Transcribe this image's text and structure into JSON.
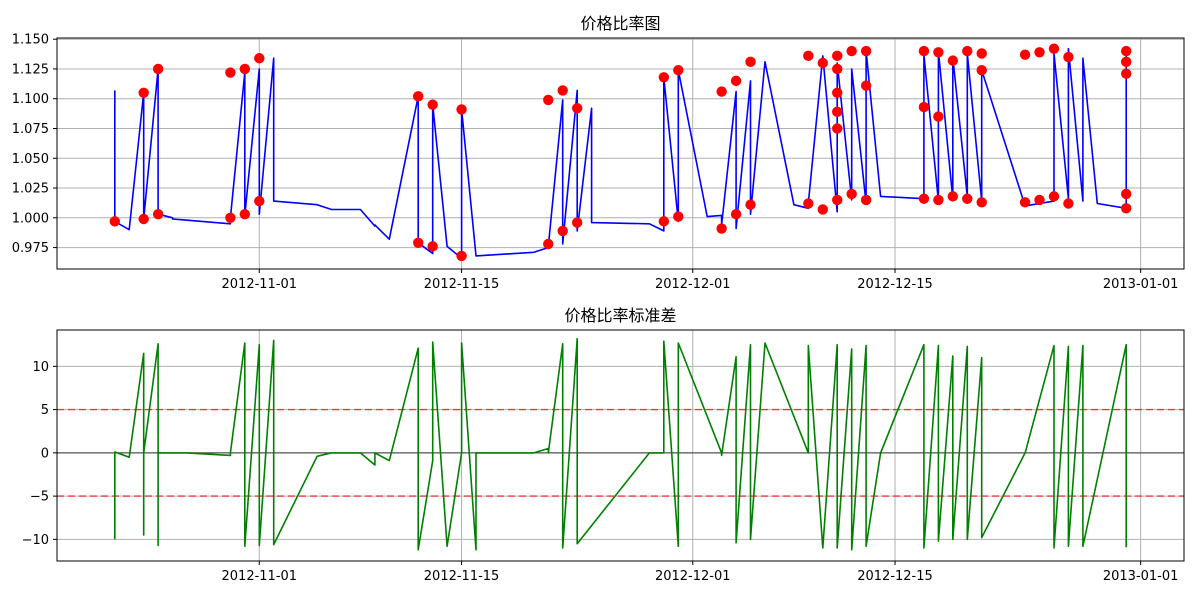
{
  "chart_data": [
    {
      "type": "line",
      "title": "价格比率图",
      "xlabel": "",
      "ylabel": "",
      "x_range": [
        "2012-10-18",
        "2013-01-04"
      ],
      "ylim": [
        0.957,
        1.151
      ],
      "grid": true,
      "colors": {
        "line": "#0000ff",
        "points": "#ff0000"
      },
      "x_ticks": [
        "2012-11-01",
        "2012-11-15",
        "2012-12-01",
        "2012-12-15",
        "2013-01-01"
      ],
      "y_ticks": [
        "0.975",
        "1.000",
        "1.025",
        "1.050",
        "1.075",
        "1.100",
        "1.125",
        "1.150"
      ],
      "series": [
        {
          "x": [
            "2012-10-22",
            "2012-10-22",
            "2012-10-23",
            "2012-10-24",
            "2012-10-24",
            "2012-10-25",
            "2012-10-25",
            "2012-10-26",
            "2012-10-26",
            "2012-10-27",
            "2012-10-30",
            "2012-10-30",
            "2012-10-31",
            "2012-10-31",
            "2012-11-01",
            "2012-11-01",
            "2012-11-02",
            "2012-11-02",
            "2012-11-05",
            "2012-11-06",
            "2012-11-08",
            "2012-11-09",
            "2012-11-09",
            "2012-11-10",
            "2012-11-12",
            "2012-11-12",
            "2012-11-13",
            "2012-11-13",
            "2012-11-14",
            "2012-11-15",
            "2012-11-15",
            "2012-11-16",
            "2012-11-16",
            "2012-11-20",
            "2012-11-21",
            "2012-11-21",
            "2012-11-22",
            "2012-11-22",
            "2012-11-23",
            "2012-11-23",
            "2012-11-24",
            "2012-11-24",
            "2012-11-28",
            "2012-11-29",
            "2012-11-29",
            "2012-11-30",
            "2012-11-30",
            "2012-12-02",
            "2012-12-03",
            "2012-12-03",
            "2012-12-04",
            "2012-12-04",
            "2012-12-05",
            "2012-12-05",
            "2012-12-06",
            "2012-12-08",
            "2012-12-09",
            "2012-12-09",
            "2012-12-10",
            "2012-12-11",
            "2012-12-11",
            "2012-12-12",
            "2012-12-12",
            "2012-12-13",
            "2012-12-13",
            "2012-12-14",
            "2012-12-17",
            "2012-12-17",
            "2012-12-18",
            "2012-12-18",
            "2012-12-19",
            "2012-12-19",
            "2012-12-20",
            "2012-12-20",
            "2012-12-21",
            "2012-12-21",
            "2012-12-24",
            "2012-12-26",
            "2012-12-26",
            "2012-12-27",
            "2012-12-27",
            "2012-12-28",
            "2012-12-28",
            "2012-12-29",
            "2012-12-31",
            "2012-12-31"
          ],
          "values": [
            1.107,
            0.997,
            0.99,
            1.105,
            0.999,
            1.125,
            1.003,
            1.0,
            0.999,
            0.998,
            0.995,
            1.0,
            1.122,
            1.002,
            1.125,
            1.003,
            1.134,
            1.014,
            1.011,
            1.007,
            1.007,
            0.993,
            0.994,
            0.982,
            1.102,
            0.979,
            0.97,
            1.095,
            0.976,
            0.966,
            1.091,
            0.968,
            0.968,
            0.971,
            0.975,
            0.976,
            1.099,
            0.978,
            1.107,
            0.989,
            1.092,
            0.996,
            0.995,
            0.989,
            1.118,
            0.997,
            1.124,
            1.001,
            1.002,
            0.994,
            1.106,
            0.991,
            1.115,
            1.003,
            1.131,
            1.011,
            1.008,
            1.012,
            1.136,
            1.005,
            1.13,
            1.015,
            1.125,
            1.012,
            1.14,
            1.018,
            1.016,
            1.137,
            1.014,
            1.14,
            1.016,
            1.135,
            1.018,
            1.138,
            1.014,
            1.124,
            1.01,
            1.014,
            1.138,
            1.016,
            1.142,
            1.014,
            1.134,
            1.012,
            1.008,
            1.14
          ]
        }
      ],
      "highlight_points": {
        "x": [
          "2012-10-22",
          "2012-10-24",
          "2012-10-24",
          "2012-10-25",
          "2012-10-25",
          "2012-10-30",
          "2012-10-30",
          "2012-10-31",
          "2012-10-31",
          "2012-11-01",
          "2012-11-01",
          "2012-11-12",
          "2012-11-12",
          "2012-11-13",
          "2012-11-13",
          "2012-11-15",
          "2012-11-15",
          "2012-11-21",
          "2012-11-21",
          "2012-11-22",
          "2012-11-22",
          "2012-11-23",
          "2012-11-23",
          "2012-11-29",
          "2012-11-29",
          "2012-11-30",
          "2012-11-30",
          "2012-12-03",
          "2012-12-03",
          "2012-12-04",
          "2012-12-04",
          "2012-12-05",
          "2012-12-05",
          "2012-12-09",
          "2012-12-09",
          "2012-12-10",
          "2012-12-10",
          "2012-12-11",
          "2012-12-11",
          "2012-12-11",
          "2012-12-11",
          "2012-12-11",
          "2012-12-11",
          "2012-12-12",
          "2012-12-12",
          "2012-12-13",
          "2012-12-13",
          "2012-12-13",
          "2012-12-17",
          "2012-12-17",
          "2012-12-17",
          "2012-12-18",
          "2012-12-18",
          "2012-12-18",
          "2012-12-19",
          "2012-12-19",
          "2012-12-20",
          "2012-12-20",
          "2012-12-21",
          "2012-12-21",
          "2012-12-21",
          "2012-12-24",
          "2012-12-24",
          "2012-12-25",
          "2012-12-25",
          "2012-12-26",
          "2012-12-26",
          "2012-12-27",
          "2012-12-27",
          "2012-12-31",
          "2012-12-31",
          "2012-12-31",
          "2012-12-31",
          "2012-12-31"
        ],
        "values": [
          0.997,
          1.105,
          0.999,
          1.125,
          1.003,
          1.122,
          1.0,
          1.125,
          1.003,
          1.134,
          1.014,
          1.102,
          0.979,
          1.095,
          0.976,
          1.091,
          0.968,
          1.099,
          0.978,
          1.107,
          0.989,
          1.092,
          0.996,
          1.118,
          0.997,
          1.124,
          1.001,
          1.106,
          0.991,
          1.115,
          1.003,
          1.131,
          1.011,
          1.136,
          1.012,
          1.13,
          1.007,
          1.136,
          1.125,
          1.105,
          1.089,
          1.075,
          1.015,
          1.14,
          1.02,
          1.111,
          1.14,
          1.015,
          1.14,
          1.093,
          1.016,
          1.139,
          1.085,
          1.015,
          1.132,
          1.018,
          1.14,
          1.016,
          1.138,
          1.124,
          1.013,
          1.137,
          1.013,
          1.139,
          1.015,
          1.142,
          1.018,
          1.135,
          1.012,
          1.14,
          1.131,
          1.121,
          1.02,
          1.008
        ]
      }
    },
    {
      "type": "line",
      "title": "价格比率标准差",
      "xlabel": "",
      "ylabel": "",
      "x_range": [
        "2012-10-18",
        "2013-01-04"
      ],
      "ylim": [
        -12.5,
        14.2
      ],
      "grid": true,
      "colors": {
        "line": "#008000",
        "threshold": "#ff0000",
        "zero": "#555555"
      },
      "x_ticks": [
        "2012-11-01",
        "2012-11-15",
        "2012-12-01",
        "2012-12-15",
        "2013-01-01"
      ],
      "y_ticks": [
        "−10",
        "−5",
        "0",
        "5",
        "10"
      ],
      "thresholds": [
        5,
        -5
      ],
      "zero_line": 0,
      "series": [
        {
          "x": [
            "2012-10-22",
            "2012-10-22",
            "2012-10-23",
            "2012-10-24",
            "2012-10-24",
            "2012-10-24",
            "2012-10-25",
            "2012-10-25",
            "2012-10-25",
            "2012-10-27",
            "2012-10-30",
            "2012-10-30",
            "2012-10-31",
            "2012-10-31",
            "2012-11-01",
            "2012-11-01",
            "2012-11-02",
            "2012-11-02",
            "2012-11-05",
            "2012-11-06",
            "2012-11-08",
            "2012-11-09",
            "2012-11-09",
            "2012-11-10",
            "2012-11-12",
            "2012-11-12",
            "2012-11-13",
            "2012-11-13",
            "2012-11-14",
            "2012-11-15",
            "2012-11-15",
            "2012-11-16",
            "2012-11-16",
            "2012-11-20",
            "2012-11-21",
            "2012-11-21",
            "2012-11-22",
            "2012-11-22",
            "2012-11-23",
            "2012-11-23",
            "2012-11-28",
            "2012-11-29",
            "2012-11-29",
            "2012-11-30",
            "2012-11-30",
            "2012-12-03",
            "2012-12-03",
            "2012-12-04",
            "2012-12-04",
            "2012-12-05",
            "2012-12-05",
            "2012-12-06",
            "2012-12-09",
            "2012-12-09",
            "2012-12-10",
            "2012-12-11",
            "2012-12-11",
            "2012-12-12",
            "2012-12-12",
            "2012-12-13",
            "2012-12-13",
            "2012-12-14",
            "2012-12-17",
            "2012-12-17",
            "2012-12-18",
            "2012-12-18",
            "2012-12-19",
            "2012-12-19",
            "2012-12-20",
            "2012-12-20",
            "2012-12-21",
            "2012-12-21",
            "2012-12-24",
            "2012-12-26",
            "2012-12-26",
            "2012-12-27",
            "2012-12-27",
            "2012-12-28",
            "2012-12-28",
            "2012-12-31",
            "2012-12-31"
          ],
          "values": [
            -10.0,
            0.1,
            -0.5,
            11.5,
            -9.5,
            0.0,
            12.6,
            -10.7,
            0.0,
            0.0,
            -0.3,
            0.0,
            12.7,
            -10.8,
            12.5,
            -10.7,
            13.0,
            -10.6,
            -0.4,
            0.0,
            0.0,
            -1.4,
            0.0,
            -0.9,
            12.1,
            -11.2,
            -0.9,
            12.8,
            -10.8,
            0.0,
            12.7,
            -11.2,
            0.0,
            0.0,
            0.5,
            0.0,
            12.6,
            -11.0,
            13.2,
            -10.5,
            0.0,
            0.0,
            12.9,
            -10.8,
            12.7,
            0.0,
            -0.3,
            11.1,
            -10.4,
            12.5,
            -10.0,
            12.7,
            0.0,
            12.4,
            -11.0,
            12.5,
            -11.0,
            12.0,
            -11.2,
            12.4,
            -10.8,
            0.0,
            12.5,
            -11.0,
            12.4,
            -10.2,
            11.2,
            -10.0,
            12.3,
            -10.0,
            11.0,
            -9.8,
            0.0,
            12.4,
            -11.0,
            12.3,
            -10.8,
            12.4,
            -10.8,
            12.5,
            -10.9
          ]
        }
      ]
    }
  ]
}
